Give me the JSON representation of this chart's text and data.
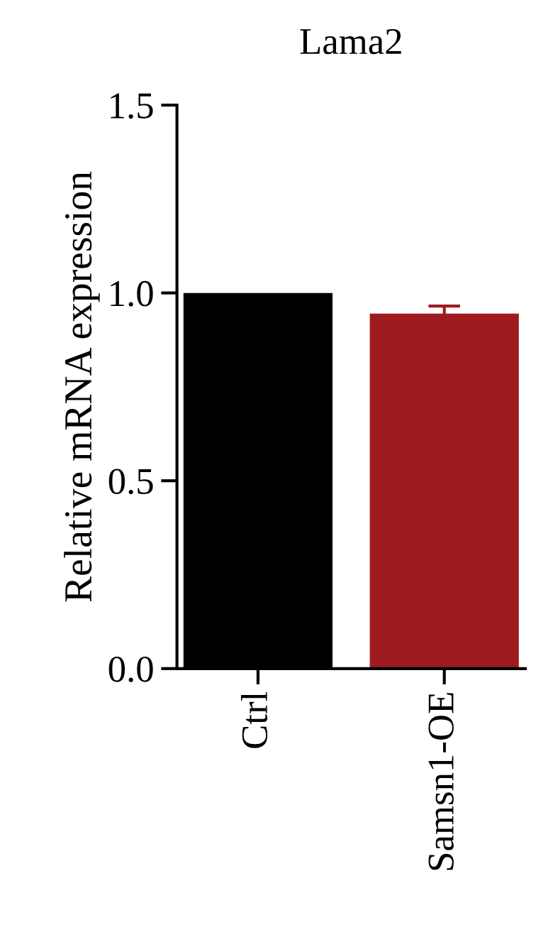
{
  "chart_data": {
    "type": "bar",
    "title": "Lama2",
    "ylabel": "Relative mRNA expression",
    "categories": [
      "Ctrl",
      "Samsn1-OE"
    ],
    "values": [
      1.0,
      0.945
    ],
    "colors": [
      "#000000",
      "#9e1b20"
    ],
    "errors": [
      null,
      0.02
    ],
    "ylim": [
      0,
      1.5
    ],
    "yticks": [
      {
        "value": 0,
        "label": "0.0"
      },
      {
        "value": 0.5,
        "label": "0.5"
      },
      {
        "value": 1.0,
        "label": "1.0"
      },
      {
        "value": 1.5,
        "label": "1.5"
      }
    ],
    "grid": false,
    "legend": false
  }
}
